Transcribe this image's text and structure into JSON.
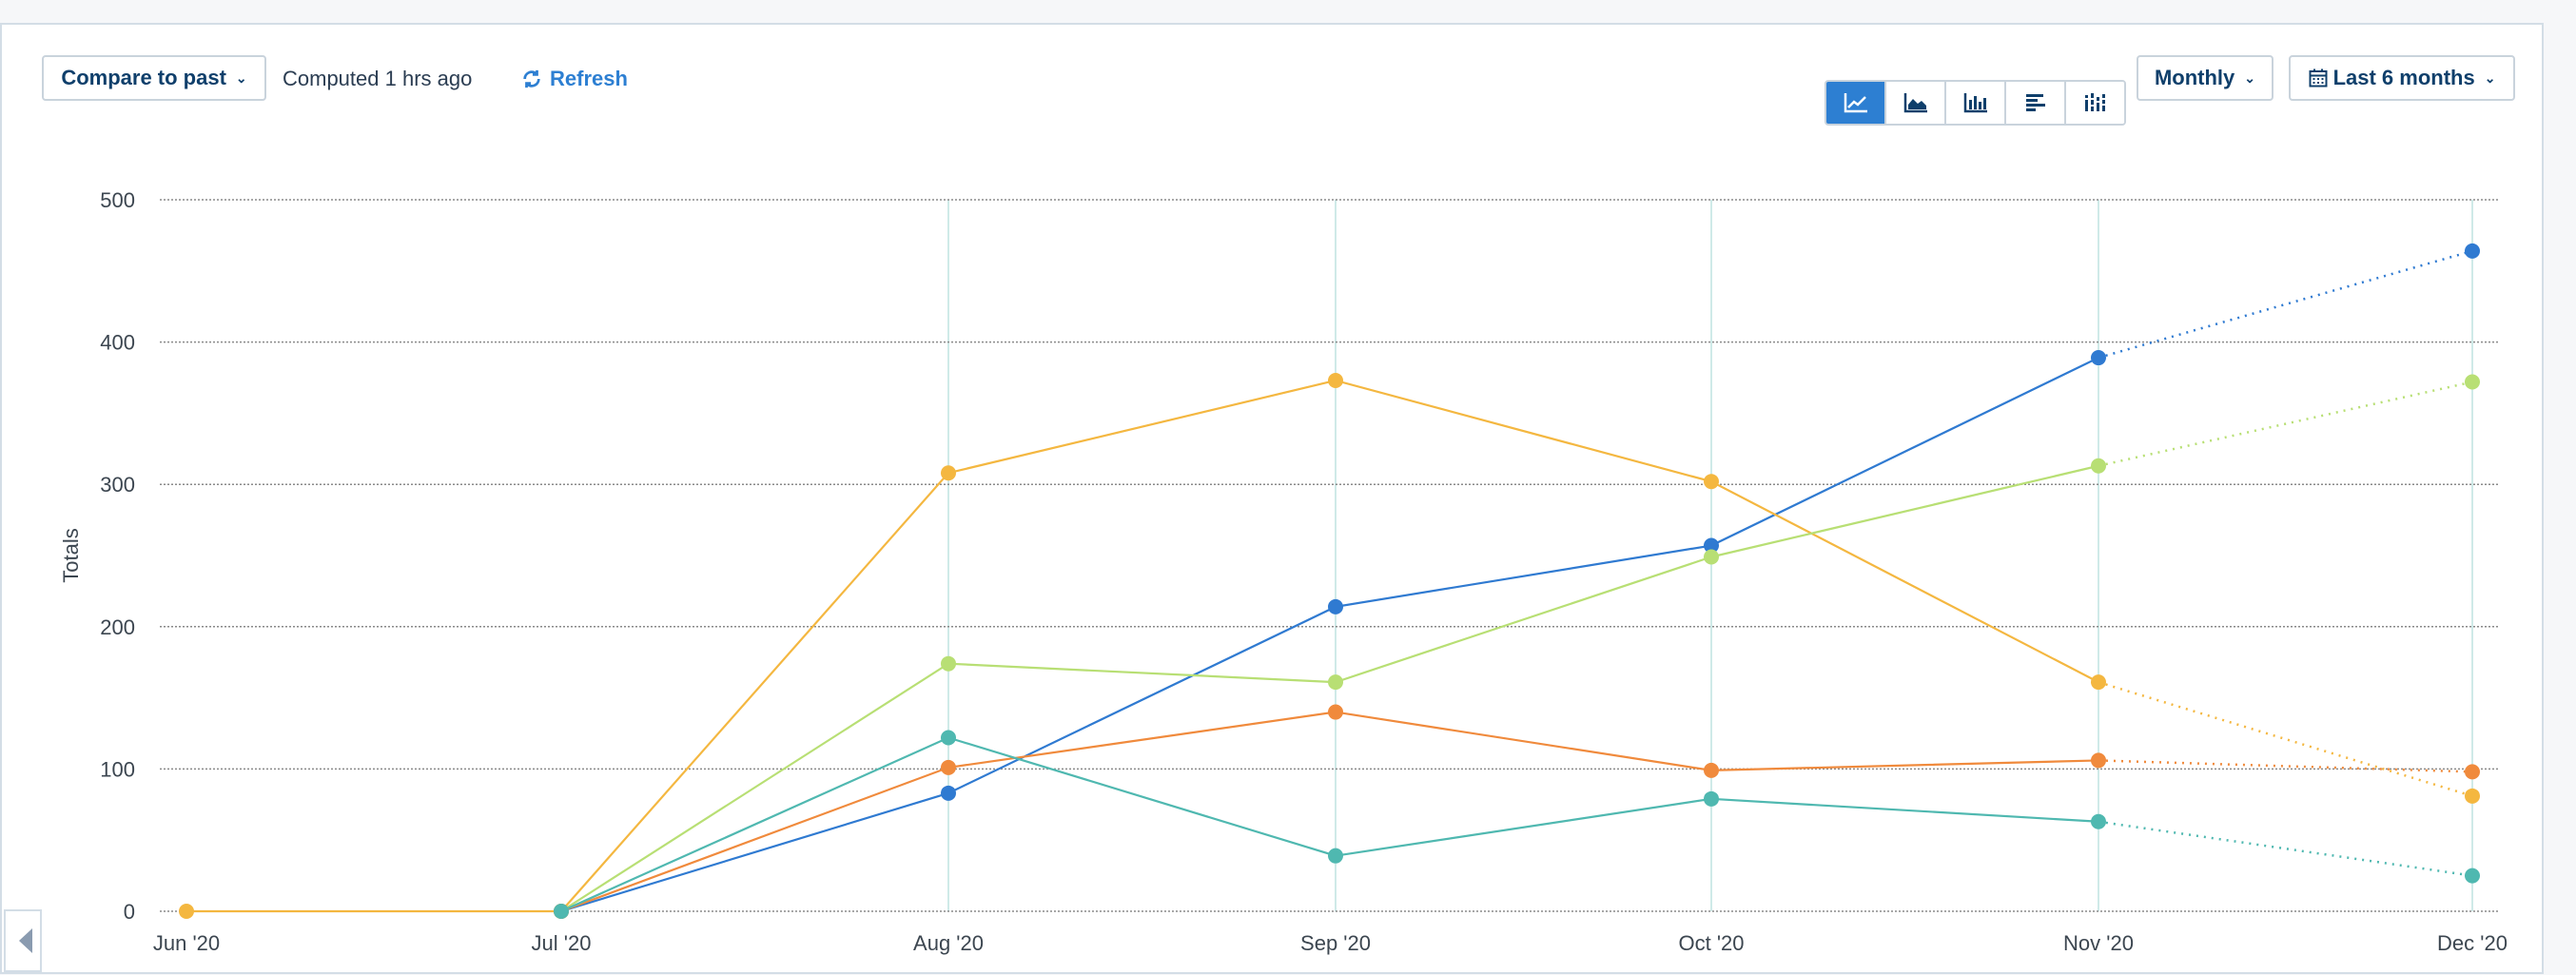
{
  "toolbar": {
    "compare_label": "Compare to past",
    "computed_text": "Computed 1 hrs ago",
    "refresh_label": "Refresh",
    "interval_label": "Monthly",
    "range_label": "Last 6 months",
    "chart_type_buttons": [
      {
        "icon": "line-chart-icon",
        "active": true
      },
      {
        "icon": "area-chart-icon",
        "active": false
      },
      {
        "icon": "bar-chart-icon",
        "active": false
      },
      {
        "icon": "horizontal-bar-icon",
        "active": false
      },
      {
        "icon": "stacked-bar-icon",
        "active": false
      }
    ]
  },
  "colors": {
    "accent": "#2d7fd2",
    "series_blue": "#2f7ad1",
    "series_yellow": "#f4b740",
    "series_green": "#b8df74",
    "series_orange": "#f08a3c",
    "series_teal": "#4fb8b0"
  },
  "chart_data": {
    "type": "line",
    "ylabel": "Totals",
    "xlabel": "",
    "ylim": [
      0,
      500
    ],
    "yticks": [
      "0",
      "100",
      "200",
      "300",
      "400",
      "500"
    ],
    "categories": [
      "Jun '20",
      "Jul '20",
      "Aug '20",
      "Sep '20",
      "Oct '20",
      "Nov '20",
      "Dec '20"
    ],
    "incomplete_last_period": true,
    "grid": true,
    "series": [
      {
        "color": "#2f7ad1",
        "values": [
          null,
          0,
          83,
          214,
          257,
          389,
          464
        ]
      },
      {
        "color": "#f4b740",
        "values": [
          0,
          0,
          308,
          373,
          302,
          161,
          81
        ]
      },
      {
        "color": "#b8df74",
        "values": [
          null,
          0,
          174,
          161,
          249,
          313,
          372
        ]
      },
      {
        "color": "#f08a3c",
        "values": [
          null,
          0,
          101,
          140,
          99,
          106,
          98
        ]
      },
      {
        "color": "#4fb8b0",
        "values": [
          null,
          0,
          122,
          39,
          79,
          63,
          25
        ]
      }
    ]
  }
}
